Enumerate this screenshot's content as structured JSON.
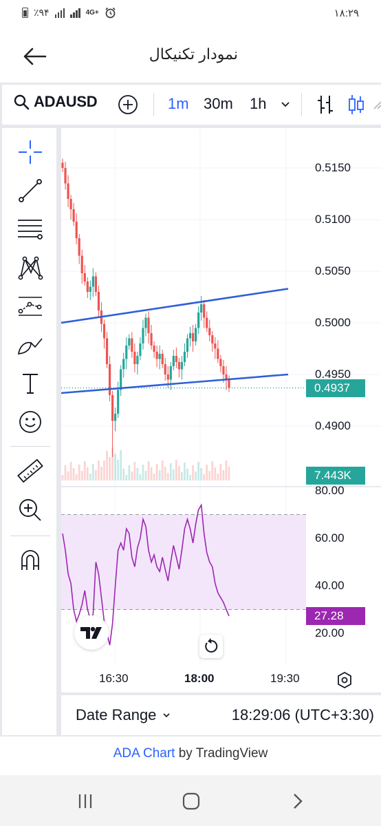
{
  "status_bar": {
    "battery": "٪۹۴",
    "network": "4G+",
    "time": "۱۸:۲۹"
  },
  "header": {
    "title": "نمودار تکنیکال",
    "back_icon": "arrow-left-icon"
  },
  "toolbar": {
    "symbol": "ADAUSD",
    "intervals": [
      "1m",
      "30m",
      "1h"
    ],
    "active_interval": "1m",
    "icons": [
      "search-icon",
      "plus-circle-icon",
      "chevron-down-icon",
      "bar-style-icon",
      "candle-style-icon"
    ]
  },
  "drawing_tools": [
    "crosshair-icon",
    "trend-line-icon",
    "fib-lines-icon",
    "pattern-icon",
    "forecast-icon",
    "brush-icon",
    "text-icon",
    "emoji-icon",
    "ruler-icon",
    "zoom-in-icon",
    "magnet-icon"
  ],
  "price_axis": {
    "ticks": [
      "0.5150",
      "0.5100",
      "0.5050",
      "0.5000",
      "0.4950",
      "0.4900"
    ],
    "last_price": "0.4937",
    "volume": "7.443K"
  },
  "rsi_axis": {
    "ticks": [
      "80.00",
      "60.00",
      "40.00",
      "20.00"
    ],
    "last_value": "27.28"
  },
  "time_axis": {
    "ticks": [
      "16:30",
      "18:00",
      "19:30"
    ]
  },
  "bottom_bar": {
    "date_range": "Date Range",
    "clock": "18:29:06 (UTC+3:30)"
  },
  "attribution": {
    "link": "ADA Chart",
    "rest": " by TradingView"
  },
  "colors": {
    "accent": "#2962ff",
    "up": "#26a69a",
    "down": "#ef5350",
    "rsi": "#9c27b0",
    "rsi_band": "#f3e6fb",
    "trendline": "#2f5fd8"
  },
  "chart_data": {
    "type": "candlestick",
    "symbol": "ADAUSD",
    "interval": "1m",
    "price_range": [
      0.4867,
      0.5165
    ],
    "close_series": [
      0.515,
      0.5135,
      0.512,
      0.511,
      0.5098,
      0.5082,
      0.5065,
      0.5048,
      0.504,
      0.503,
      0.5035,
      0.5045,
      0.503,
      0.5012,
      0.4999,
      0.4985,
      0.496,
      0.493,
      0.4905,
      0.4912,
      0.4935,
      0.4955,
      0.4965,
      0.4978,
      0.4985,
      0.4972,
      0.496,
      0.4968,
      0.498,
      0.4995,
      0.5005,
      0.499,
      0.4978,
      0.4972,
      0.4965,
      0.497,
      0.496,
      0.495,
      0.4945,
      0.4958,
      0.4968,
      0.4962,
      0.4955,
      0.4962,
      0.4972,
      0.4985,
      0.499,
      0.4982,
      0.4995,
      0.501,
      0.5018,
      0.5005,
      0.4995,
      0.4988,
      0.498,
      0.4975,
      0.4965,
      0.4958,
      0.495,
      0.4945,
      0.4937
    ],
    "trendlines": [
      {
        "name": "upper",
        "from": [
          0,
          0.5
        ],
        "to": [
          1,
          0.5033
        ]
      },
      {
        "name": "lower",
        "from": [
          0,
          0.4932
        ],
        "to": [
          1,
          0.495
        ]
      }
    ],
    "last_price": 0.4937,
    "volume_last": "7.443K",
    "rsi": {
      "range": [
        20,
        80
      ],
      "band": [
        30,
        70
      ],
      "values": [
        62,
        55,
        45,
        41,
        30,
        25,
        28,
        32,
        38,
        30,
        26,
        28,
        50,
        45,
        35,
        25,
        20,
        15,
        24,
        40,
        55,
        58,
        55,
        64,
        62,
        52,
        48,
        56,
        60,
        68,
        65,
        55,
        50,
        53,
        48,
        46,
        52,
        47,
        42,
        50,
        57,
        52,
        47,
        55,
        64,
        68,
        64,
        58,
        66,
        72,
        74,
        62,
        54,
        50,
        48,
        41,
        37,
        35,
        33,
        30,
        27.28
      ],
      "last_value": 27.28
    },
    "time_ticks": [
      "16:30",
      "18:00",
      "19:30"
    ]
  }
}
